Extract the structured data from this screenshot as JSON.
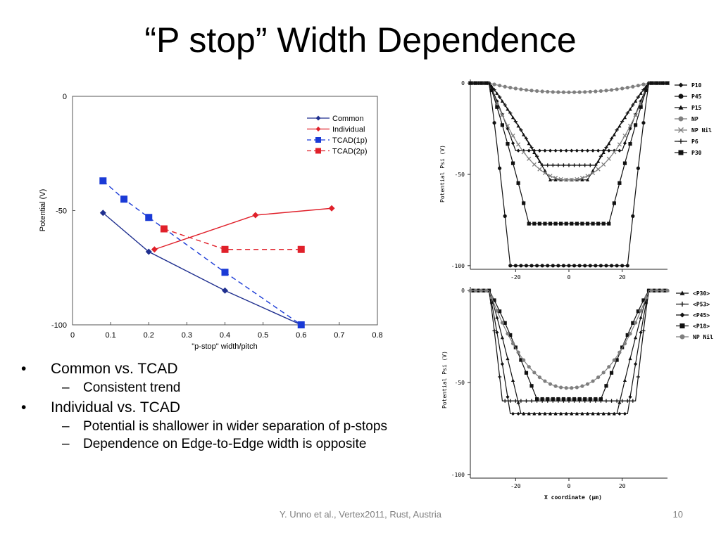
{
  "slide": {
    "title": "“P stop” Width Dependence",
    "footer": "Y. Unno et al., Vertex2011, Rust, Austria",
    "page_number": "10",
    "bullets": [
      {
        "text": "Common vs. TCAD",
        "sub": [
          "Consistent trend"
        ]
      },
      {
        "text": "Individual vs. TCAD",
        "sub": [
          "Potential is shallower in wider separation of p-stops",
          "Dependence on Edge-to-Edge width is opposite"
        ]
      }
    ]
  },
  "chart_data": [
    {
      "type": "line",
      "xlabel": "\"p-stop\" width/pitch",
      "ylabel": "Potential (V)",
      "xlim": [
        0,
        0.8
      ],
      "ylim": [
        -100,
        0
      ],
      "xticks": [
        "0",
        "0.1",
        "0.2",
        "0.3",
        "0.4",
        "0.5",
        "0.6",
        "0.7",
        "0.8"
      ],
      "yticks": [
        "0",
        "-50",
        "-100"
      ],
      "grid": false,
      "legend": "top-right",
      "series": [
        {
          "name": "Common",
          "color": "#1f2f8f",
          "dashed": false,
          "marker": "diamond",
          "x": [
            0.08,
            0.2,
            0.4,
            0.6
          ],
          "y": [
            -51,
            -68,
            -85,
            -100
          ]
        },
        {
          "name": "Individual",
          "color": "#e0202a",
          "dashed": false,
          "marker": "diamond",
          "x": [
            0.215,
            0.48,
            0.68
          ],
          "y": [
            -67,
            -52,
            -49
          ]
        },
        {
          "name": "TCAD(1p)",
          "color": "#1a3ad6",
          "dashed": true,
          "marker": "square",
          "x": [
            0.08,
            0.135,
            0.2,
            0.4,
            0.6
          ],
          "y": [
            -37,
            -45,
            -53,
            -77,
            -100
          ]
        },
        {
          "name": "TCAD(2p)",
          "color": "#e0202a",
          "dashed": true,
          "marker": "square",
          "x": [
            0.24,
            0.4,
            0.6
          ],
          "y": [
            -58,
            -67,
            -67
          ]
        }
      ]
    },
    {
      "type": "line",
      "xlabel": "",
      "ylabel": "Potential Psi (V)",
      "xlim": [
        -37,
        37
      ],
      "ylim": [
        -102,
        2
      ],
      "xticks": [
        "-20",
        "0",
        "20"
      ],
      "yticks": [
        "0",
        "-50",
        "-100"
      ],
      "legend": "right",
      "series": [
        {
          "name": "P10",
          "marker": "diamond",
          "color": "#111111",
          "bottom": -37,
          "edge_top": 27,
          "edge_bot": 20
        },
        {
          "name": "P45",
          "marker": "circle",
          "color": "#111111",
          "bottom": -100,
          "edge_top": 27,
          "edge_bot": 22
        },
        {
          "name": "P15",
          "marker": "triangle",
          "color": "#111111",
          "bottom": -53,
          "edge_top": 27,
          "edge_bot": 7
        },
        {
          "name": "NP",
          "marker": "circle",
          "color": "#7f7f7f",
          "bottom": -5,
          "edge_top": 0,
          "edge_bot": 0
        },
        {
          "name": "NP Nil",
          "marker": "cross",
          "color": "#7f7f7f",
          "bottom": -53,
          "edge_top": 27,
          "edge_bot": 0
        },
        {
          "name": "P6",
          "marker": "plus",
          "color": "#111111",
          "bottom": -45,
          "edge_top": 27,
          "edge_bot": 10
        },
        {
          "name": "P30",
          "marker": "square",
          "color": "#111111",
          "bottom": -77,
          "edge_top": 27,
          "edge_bot": 15
        }
      ]
    },
    {
      "type": "line",
      "xlabel": "X coordinate (µm)",
      "ylabel": "Potential Psi (V)",
      "xlim": [
        -37,
        37
      ],
      "ylim": [
        -102,
        2
      ],
      "xticks": [
        "-20",
        "0",
        "20"
      ],
      "yticks": [
        "0",
        "-50",
        "-100"
      ],
      "legend": "right",
      "series": [
        {
          "name": "<P30>",
          "marker": "triangle",
          "color": "#111111",
          "bottom": -67,
          "edge_top": 28,
          "edge_bot": 18
        },
        {
          "name": "<P53>",
          "marker": "plus",
          "color": "#111111",
          "bottom": -60,
          "edge_top": 28,
          "edge_bot": 25
        },
        {
          "name": "<P45>",
          "marker": "diamond",
          "color": "#111111",
          "bottom": -67,
          "edge_top": 28,
          "edge_bot": 22
        },
        {
          "name": "<P18>",
          "marker": "square",
          "color": "#111111",
          "bottom": -59,
          "edge_top": 28,
          "edge_bot": 12
        },
        {
          "name": "NP Nil",
          "marker": "circle",
          "color": "#7f7f7f",
          "bottom": -53,
          "edge_top": 28,
          "edge_bot": 0
        }
      ]
    }
  ]
}
